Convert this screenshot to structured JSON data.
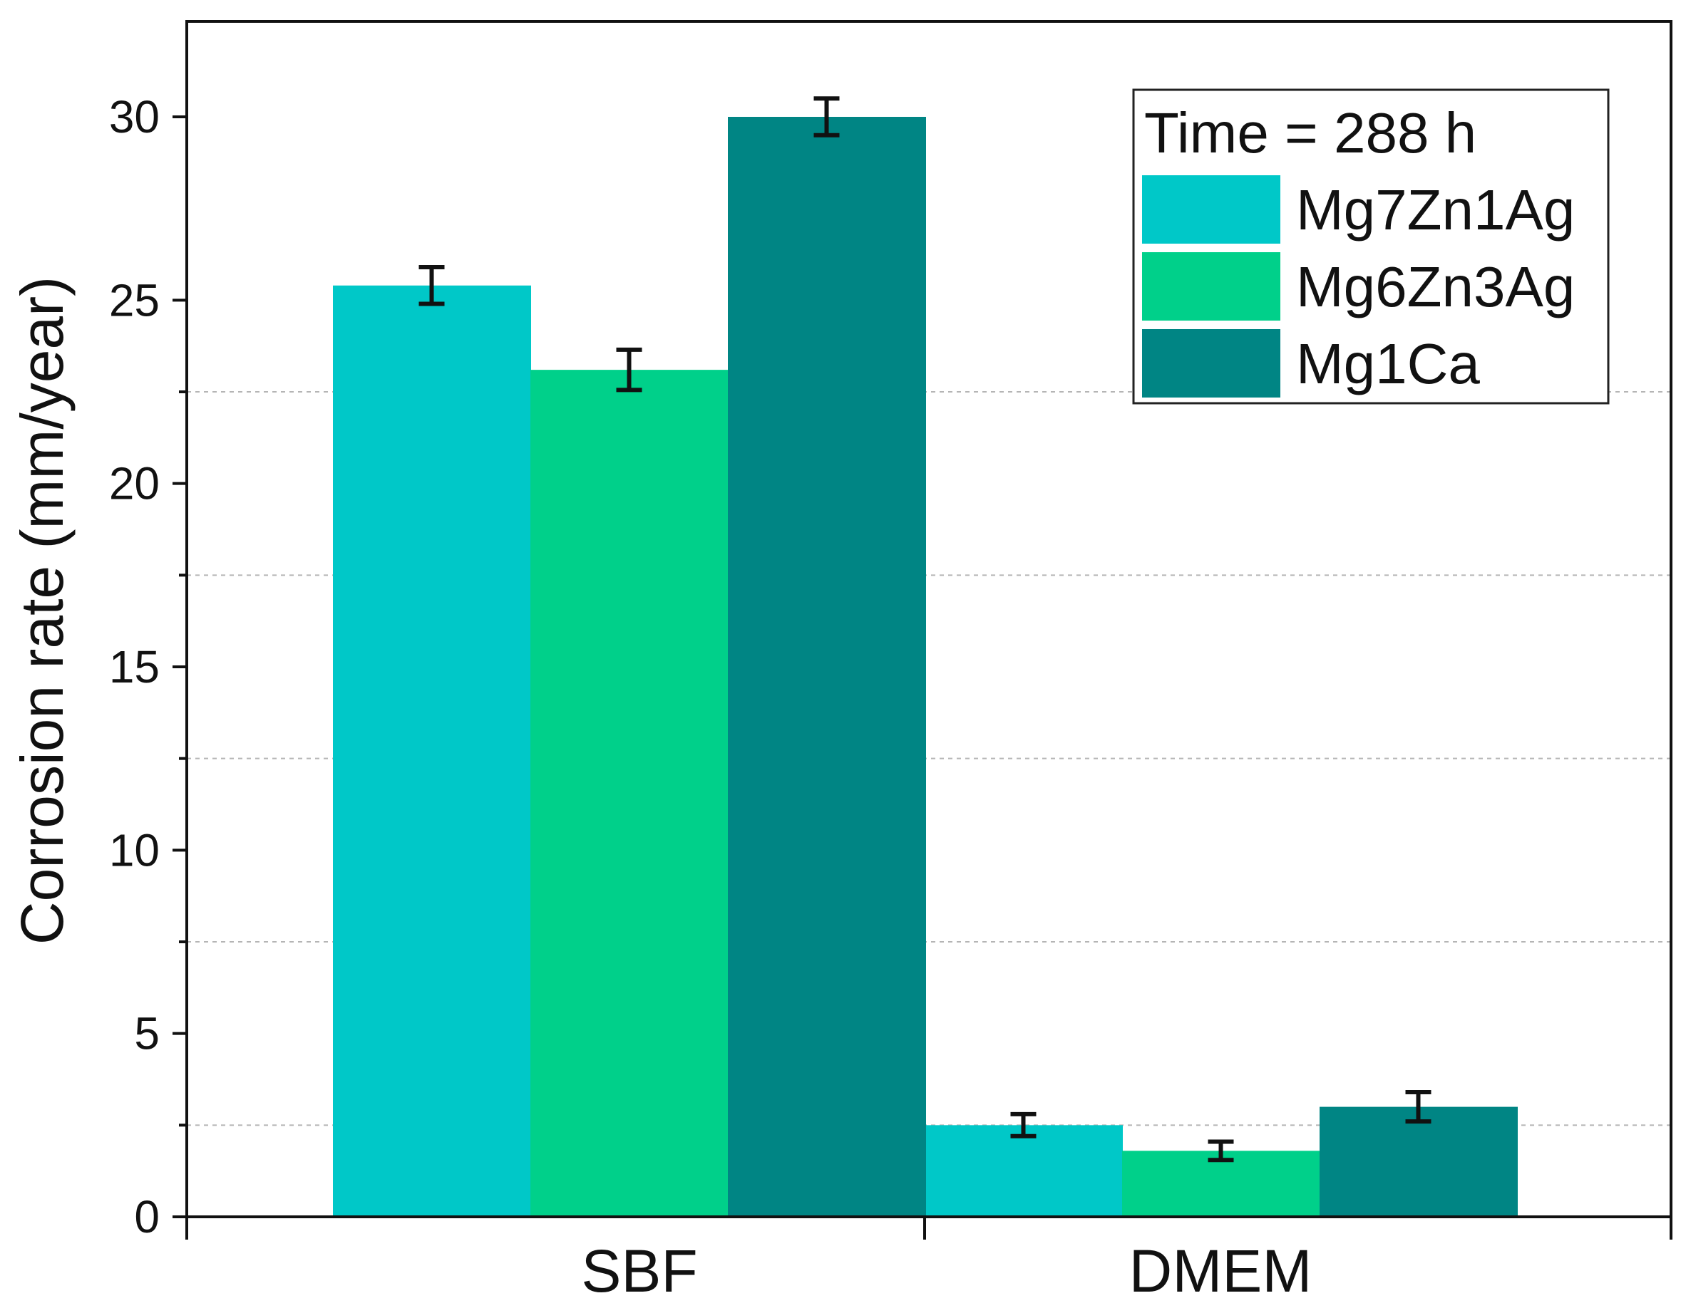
{
  "chart_data": {
    "type": "bar",
    "title": "",
    "xlabel": "",
    "ylabel": "Corrosion rate (mm/year)",
    "ylim": [
      0,
      32.5
    ],
    "yticks": [
      0,
      5,
      10,
      15,
      20,
      25,
      30
    ],
    "minor_gridlines": [
      2.5,
      7.5,
      12.5,
      17.5,
      22.5
    ],
    "categories": [
      "SBF",
      "DMEM"
    ],
    "series": [
      {
        "name": "Mg7Zn1Ag",
        "color": "#00C8C8",
        "values": [
          25.4,
          2.5
        ],
        "errors": [
          0.5,
          0.3
        ]
      },
      {
        "name": "Mg6Zn3Ag",
        "color": "#00D08A",
        "values": [
          23.1,
          1.8
        ],
        "errors": [
          0.55,
          0.25
        ]
      },
      {
        "name": "Mg1Ca",
        "color": "#008584",
        "values": [
          30.0,
          3.0
        ],
        "errors": [
          0.5,
          0.4
        ]
      }
    ],
    "legend": {
      "title": "Time = 288 h",
      "position": "top-right"
    }
  }
}
